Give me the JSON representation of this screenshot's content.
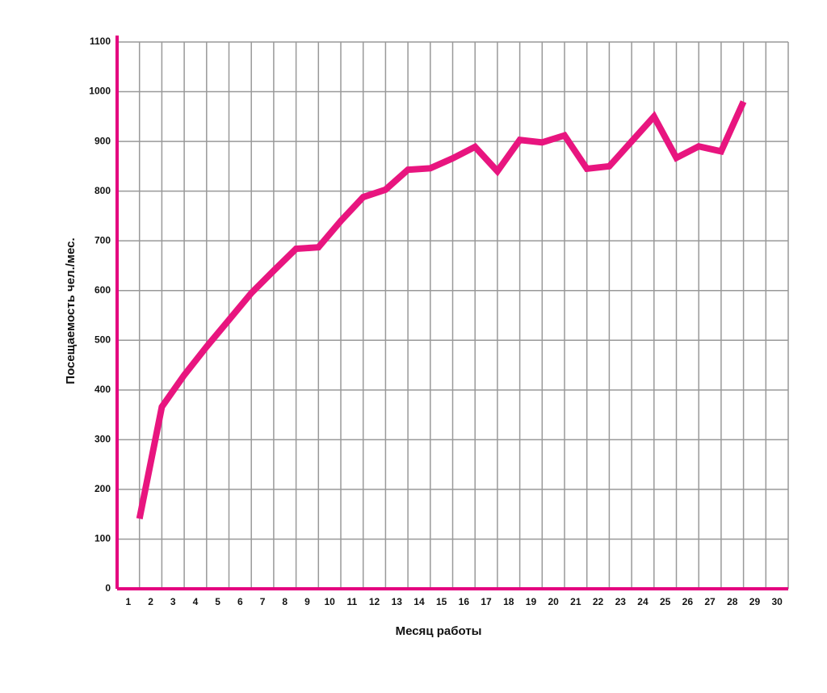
{
  "chart_data": {
    "type": "line",
    "x_label": "Месяц работы",
    "y_label": "Посещаемость чел./мес.",
    "categories": [
      "1",
      "2",
      "3",
      "4",
      "5",
      "6",
      "7",
      "8",
      "9",
      "10",
      "11",
      "12",
      "13",
      "14",
      "15",
      "16",
      "17",
      "18",
      "19",
      "20",
      "21",
      "22",
      "23",
      "24",
      "25",
      "26",
      "27",
      "28",
      "29",
      "30"
    ],
    "series": [
      {
        "color": "#e8157f",
        "values": [
          141,
          366,
          430,
          487,
          541,
          595,
          640,
          684,
          687,
          740,
          788,
          803,
          843,
          846,
          866,
          889,
          840,
          903,
          898,
          912,
          845,
          850,
          900,
          950,
          867,
          890,
          880,
          980,
          null,
          null
        ]
      }
    ],
    "ylim": [
      0,
      1100
    ],
    "yticks": [
      0,
      100,
      200,
      300,
      400,
      500,
      600,
      700,
      800,
      900,
      1000,
      1100
    ],
    "grid": true,
    "axis_color": "#e4007f"
  }
}
